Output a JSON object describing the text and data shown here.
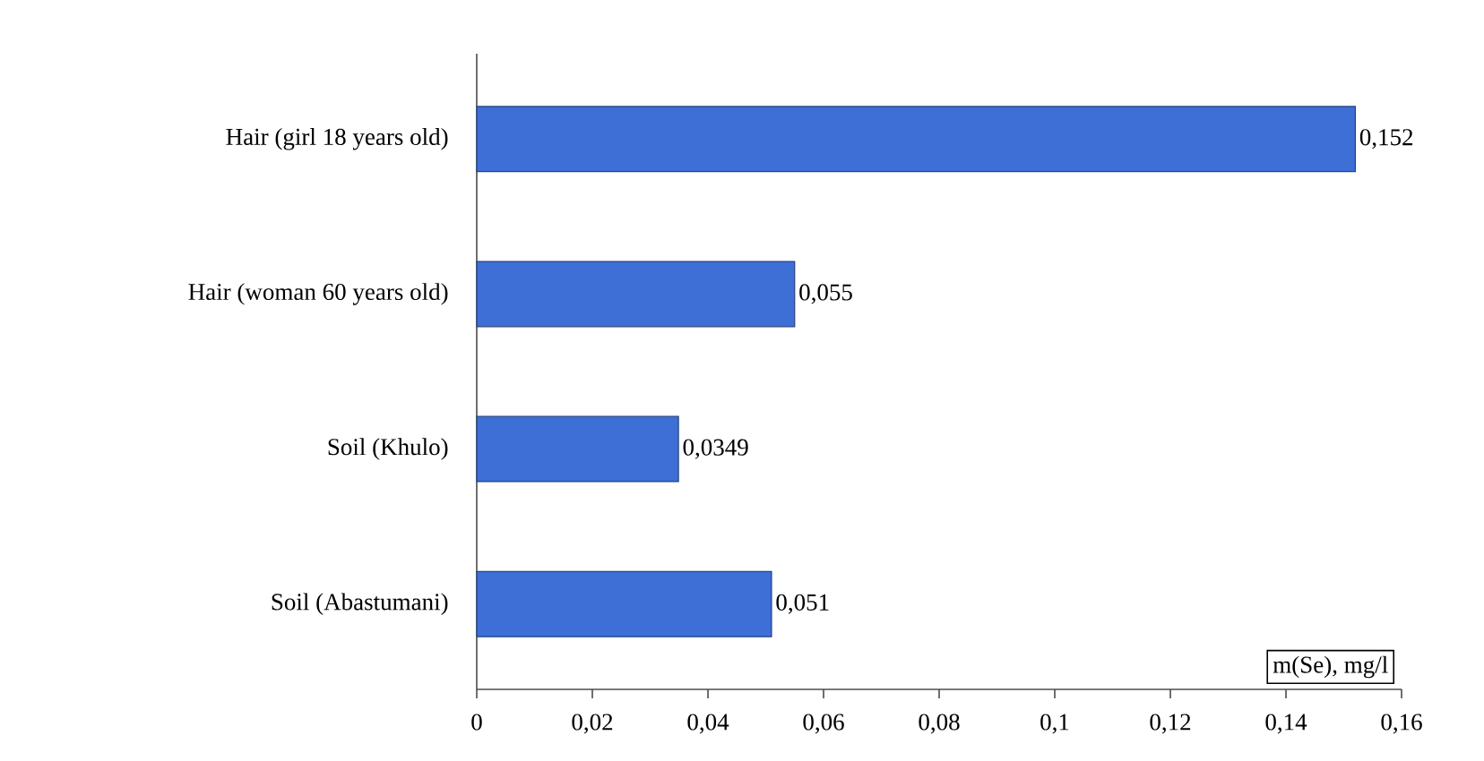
{
  "chart_data": {
    "type": "bar",
    "orientation": "horizontal",
    "xlabel": "m(Se), mg/l",
    "categories": [
      "Hair (girl 18 years old)",
      "Hair (woman 60 years old)",
      "Soil (Khulo)",
      "Soil (Abastumani)"
    ],
    "values": [
      0.152,
      0.055,
      0.0349,
      0.051
    ],
    "value_labels": [
      "0,152",
      "0,055",
      "0,0349",
      "0,051"
    ],
    "color": "#3d6fd6",
    "xlim": [
      0,
      0.16
    ],
    "xticks": [
      0,
      {
        "value": 0.02,
        "label": "0,02"
      },
      {
        "value": 0.04,
        "label": "0,04"
      },
      {
        "value": 0.06,
        "label": "0,06"
      },
      {
        "value": 0.08,
        "label": "0,08"
      },
      {
        "value": 0.1,
        "label": "0,1"
      },
      {
        "value": 0.12,
        "label": "0,12"
      },
      {
        "value": 0.14,
        "label": "0,14"
      },
      {
        "value": 0.16,
        "label": "0,16"
      }
    ],
    "grid": false
  }
}
